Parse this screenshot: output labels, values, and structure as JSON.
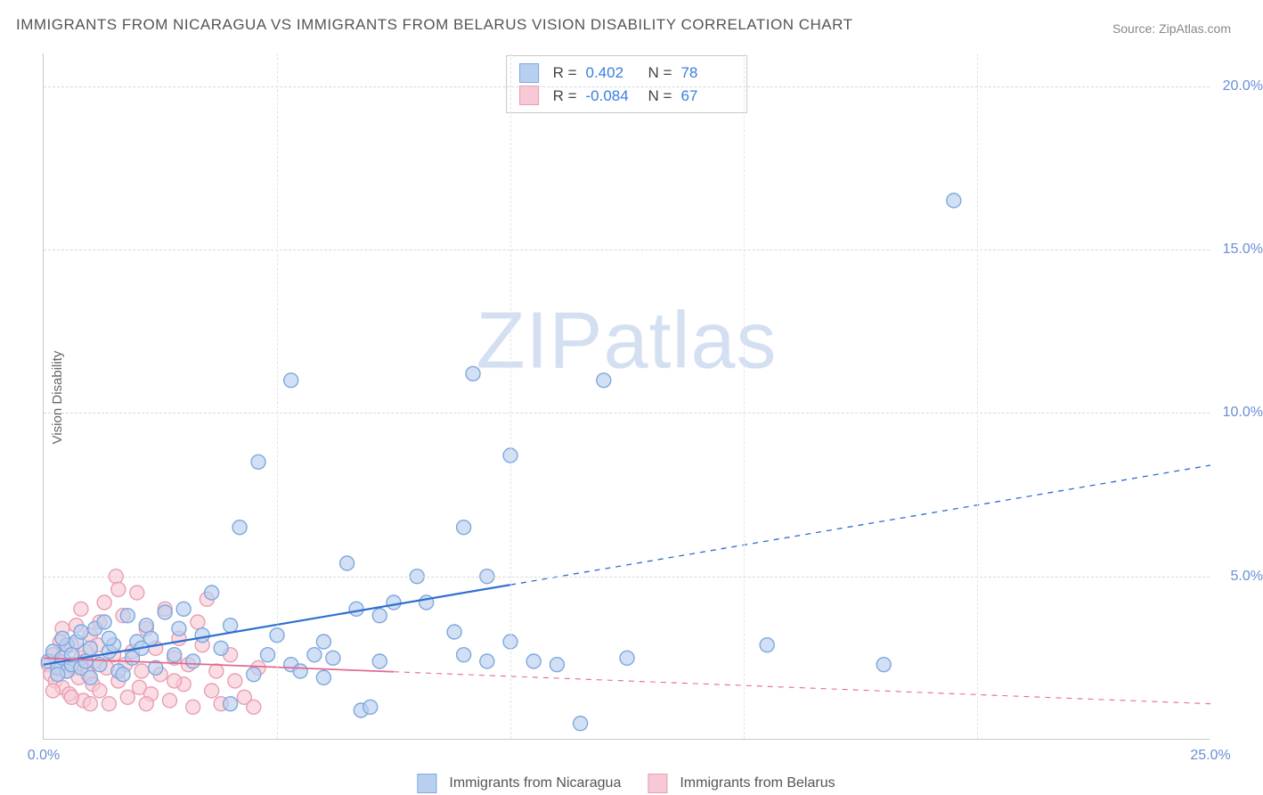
{
  "title": "IMMIGRANTS FROM NICARAGUA VS IMMIGRANTS FROM BELARUS VISION DISABILITY CORRELATION CHART",
  "source": "Source: ZipAtlas.com",
  "ylabel": "Vision Disability",
  "watermark": {
    "part1": "ZIP",
    "part2": "atlas"
  },
  "chart": {
    "type": "scatter",
    "xlim": [
      0,
      25
    ],
    "ylim": [
      0,
      21
    ],
    "xticks": [
      {
        "v": 0,
        "l": "0.0%"
      },
      {
        "v": 25,
        "l": "25.0%"
      }
    ],
    "yticks": [
      {
        "v": 5,
        "l": "5.0%"
      },
      {
        "v": 10,
        "l": "10.0%"
      },
      {
        "v": 15,
        "l": "15.0%"
      },
      {
        "v": 20,
        "l": "20.0%"
      }
    ],
    "xgrid_minor": [
      5,
      10,
      15,
      20
    ],
    "background_color": "#ffffff",
    "grid_color": "#d8d8d8",
    "marker_radius": 8,
    "marker_stroke_width": 1.4,
    "series": [
      {
        "name": "Immigrants from Nicaragua",
        "fill": "#b8d0ef",
        "stroke": "#7fa8dd",
        "fill_opacity": 0.65,
        "R": "0.402",
        "N": "78",
        "trend": {
          "x1": 0,
          "y1": 2.3,
          "x2": 25,
          "y2": 8.4,
          "solid_until_x": 10,
          "color": "#2d6fd2",
          "width": 2.2
        },
        "points": [
          [
            0.1,
            2.4
          ],
          [
            0.2,
            2.7
          ],
          [
            0.3,
            2.2
          ],
          [
            0.4,
            2.5
          ],
          [
            0.5,
            2.1
          ],
          [
            0.5,
            2.9
          ],
          [
            0.6,
            2.3
          ],
          [
            0.7,
            3.0
          ],
          [
            0.8,
            2.2
          ],
          [
            0.9,
            2.4
          ],
          [
            1.0,
            2.8
          ],
          [
            1.1,
            3.4
          ],
          [
            1.2,
            2.3
          ],
          [
            1.3,
            3.6
          ],
          [
            1.4,
            2.7
          ],
          [
            1.5,
            2.9
          ],
          [
            1.6,
            2.1
          ],
          [
            1.8,
            3.8
          ],
          [
            1.9,
            2.5
          ],
          [
            2.0,
            3.0
          ],
          [
            2.1,
            2.8
          ],
          [
            2.2,
            3.5
          ],
          [
            2.4,
            2.2
          ],
          [
            2.6,
            3.9
          ],
          [
            2.8,
            2.6
          ],
          [
            3.0,
            4.0
          ],
          [
            3.2,
            2.4
          ],
          [
            3.4,
            3.2
          ],
          [
            3.6,
            4.5
          ],
          [
            3.8,
            2.8
          ],
          [
            4.0,
            3.5
          ],
          [
            4.0,
            1.1
          ],
          [
            4.2,
            6.5
          ],
          [
            4.5,
            2.0
          ],
          [
            4.6,
            8.5
          ],
          [
            4.8,
            2.6
          ],
          [
            5.0,
            3.2
          ],
          [
            5.3,
            11.0
          ],
          [
            5.3,
            2.3
          ],
          [
            5.5,
            2.1
          ],
          [
            5.8,
            2.6
          ],
          [
            6.0,
            3.0
          ],
          [
            6.0,
            1.9
          ],
          [
            6.2,
            2.5
          ],
          [
            6.5,
            5.4
          ],
          [
            6.7,
            4.0
          ],
          [
            6.8,
            0.9
          ],
          [
            7.0,
            1.0
          ],
          [
            7.2,
            3.8
          ],
          [
            7.2,
            2.4
          ],
          [
            7.5,
            4.2
          ],
          [
            8.0,
            5.0
          ],
          [
            8.2,
            4.2
          ],
          [
            8.8,
            3.3
          ],
          [
            9.0,
            2.6
          ],
          [
            9.0,
            6.5
          ],
          [
            9.2,
            11.2
          ],
          [
            9.5,
            2.4
          ],
          [
            9.5,
            5.0
          ],
          [
            10.0,
            3.0
          ],
          [
            10.0,
            8.7
          ],
          [
            10.5,
            2.4
          ],
          [
            11.0,
            2.3
          ],
          [
            11.5,
            0.5
          ],
          [
            12.0,
            11.0
          ],
          [
            12.5,
            2.5
          ],
          [
            15.5,
            2.9
          ],
          [
            18.0,
            2.3
          ],
          [
            19.5,
            16.5
          ],
          [
            0.3,
            2.0
          ],
          [
            0.4,
            3.1
          ],
          [
            0.6,
            2.6
          ],
          [
            0.8,
            3.3
          ],
          [
            1.0,
            1.9
          ],
          [
            1.4,
            3.1
          ],
          [
            1.7,
            2.0
          ],
          [
            2.3,
            3.1
          ],
          [
            2.9,
            3.4
          ]
        ]
      },
      {
        "name": "Immigrants from Belarus",
        "fill": "#f7c9d4",
        "stroke": "#e99fb5",
        "fill_opacity": 0.65,
        "R": "-0.084",
        "N": "67",
        "trend": {
          "x1": 0,
          "y1": 2.5,
          "x2": 25,
          "y2": 1.1,
          "solid_until_x": 7.5,
          "color": "#e26a8f",
          "width": 1.8
        },
        "points": [
          [
            0.1,
            2.3
          ],
          [
            0.15,
            2.0
          ],
          [
            0.2,
            2.6
          ],
          [
            0.25,
            1.8
          ],
          [
            0.3,
            2.4
          ],
          [
            0.35,
            3.0
          ],
          [
            0.4,
            1.6
          ],
          [
            0.45,
            2.8
          ],
          [
            0.5,
            2.1
          ],
          [
            0.55,
            1.4
          ],
          [
            0.6,
            2.9
          ],
          [
            0.65,
            2.2
          ],
          [
            0.7,
            3.5
          ],
          [
            0.75,
            1.9
          ],
          [
            0.8,
            2.5
          ],
          [
            0.85,
            1.2
          ],
          [
            0.9,
            2.7
          ],
          [
            0.95,
            2.0
          ],
          [
            1.0,
            3.2
          ],
          [
            1.05,
            1.7
          ],
          [
            1.1,
            2.4
          ],
          [
            1.15,
            2.9
          ],
          [
            1.2,
            1.5
          ],
          [
            1.3,
            4.2
          ],
          [
            1.35,
            2.2
          ],
          [
            1.4,
            1.1
          ],
          [
            1.5,
            2.6
          ],
          [
            1.55,
            5.0
          ],
          [
            1.6,
            1.8
          ],
          [
            1.7,
            3.8
          ],
          [
            1.75,
            2.3
          ],
          [
            1.8,
            1.3
          ],
          [
            1.9,
            2.7
          ],
          [
            2.0,
            4.5
          ],
          [
            2.05,
            1.6
          ],
          [
            2.1,
            2.1
          ],
          [
            2.2,
            3.4
          ],
          [
            2.3,
            1.4
          ],
          [
            2.4,
            2.8
          ],
          [
            2.5,
            2.0
          ],
          [
            2.6,
            4.0
          ],
          [
            2.7,
            1.2
          ],
          [
            2.8,
            2.5
          ],
          [
            2.9,
            3.1
          ],
          [
            3.0,
            1.7
          ],
          [
            3.1,
            2.3
          ],
          [
            3.2,
            1.0
          ],
          [
            3.4,
            2.9
          ],
          [
            3.5,
            4.3
          ],
          [
            3.6,
            1.5
          ],
          [
            3.7,
            2.1
          ],
          [
            3.8,
            1.1
          ],
          [
            4.0,
            2.6
          ],
          [
            4.1,
            1.8
          ],
          [
            4.3,
            1.3
          ],
          [
            4.5,
            1.0
          ],
          [
            4.6,
            2.2
          ],
          [
            0.2,
            1.5
          ],
          [
            0.4,
            3.4
          ],
          [
            0.6,
            1.3
          ],
          [
            0.8,
            4.0
          ],
          [
            1.0,
            1.1
          ],
          [
            1.2,
            3.6
          ],
          [
            1.6,
            4.6
          ],
          [
            2.2,
            1.1
          ],
          [
            2.8,
            1.8
          ],
          [
            3.3,
            3.6
          ]
        ]
      }
    ]
  },
  "legend_items": [
    {
      "label": "Immigrants from Nicaragua",
      "fill": "#b8d0ef",
      "stroke": "#7fa8dd"
    },
    {
      "label": "Immigrants from Belarus",
      "fill": "#f7c9d4",
      "stroke": "#e99fb5"
    }
  ]
}
